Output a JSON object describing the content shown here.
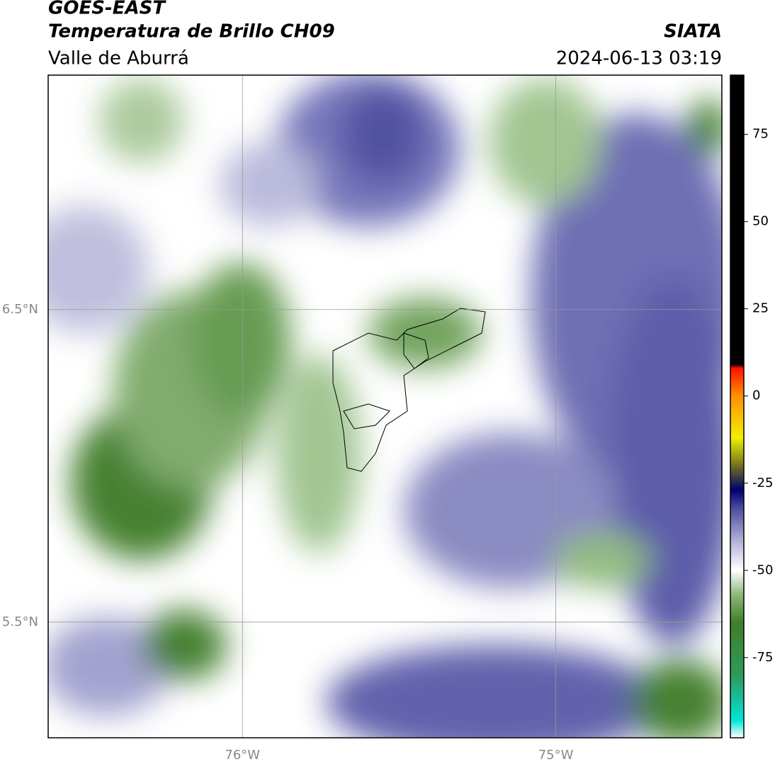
{
  "map": {
    "title": "GOES-EAST",
    "subtitle": "Temperatura de Brillo CH09",
    "region": "Valle de Aburrá",
    "source": "SIATA",
    "datetime": "2024-06-13 03:19",
    "xlim": [
      -76.62,
      -74.47
    ],
    "ylim": [
      5.13,
      7.25
    ],
    "xticks": [
      {
        "value": -76,
        "label": "76°W"
      },
      {
        "value": -75,
        "label": "75°W"
      }
    ],
    "yticks": [
      {
        "value": 6.5,
        "label": "6.5°N"
      },
      {
        "value": 5.5,
        "label": "5.5°N"
      }
    ],
    "grid": true,
    "colorbar": {
      "lim": [
        -98,
        92
      ],
      "ticks": [
        75,
        50,
        25,
        0,
        -25,
        -50,
        -75
      ],
      "stops": [
        {
          "value": -98,
          "color": "#ffffff"
        },
        {
          "value": -93,
          "color": "#00e5d8"
        },
        {
          "value": -80,
          "color": "#2e9a5a"
        },
        {
          "value": -65,
          "color": "#3f7f28"
        },
        {
          "value": -57,
          "color": "#8cb87a"
        },
        {
          "value": -50,
          "color": "#ffffff"
        },
        {
          "value": -42,
          "color": "#b6b6da"
        },
        {
          "value": -32,
          "color": "#4a4a9e"
        },
        {
          "value": -27,
          "color": "#000070"
        },
        {
          "value": -20,
          "color": "#707020"
        },
        {
          "value": -12,
          "color": "#f0f000"
        },
        {
          "value": 0,
          "color": "#ff9000"
        },
        {
          "value": 8,
          "color": "#ff1000"
        },
        {
          "value": 9,
          "color": "#000000"
        },
        {
          "value": 92,
          "color": "#000000"
        }
      ]
    }
  }
}
